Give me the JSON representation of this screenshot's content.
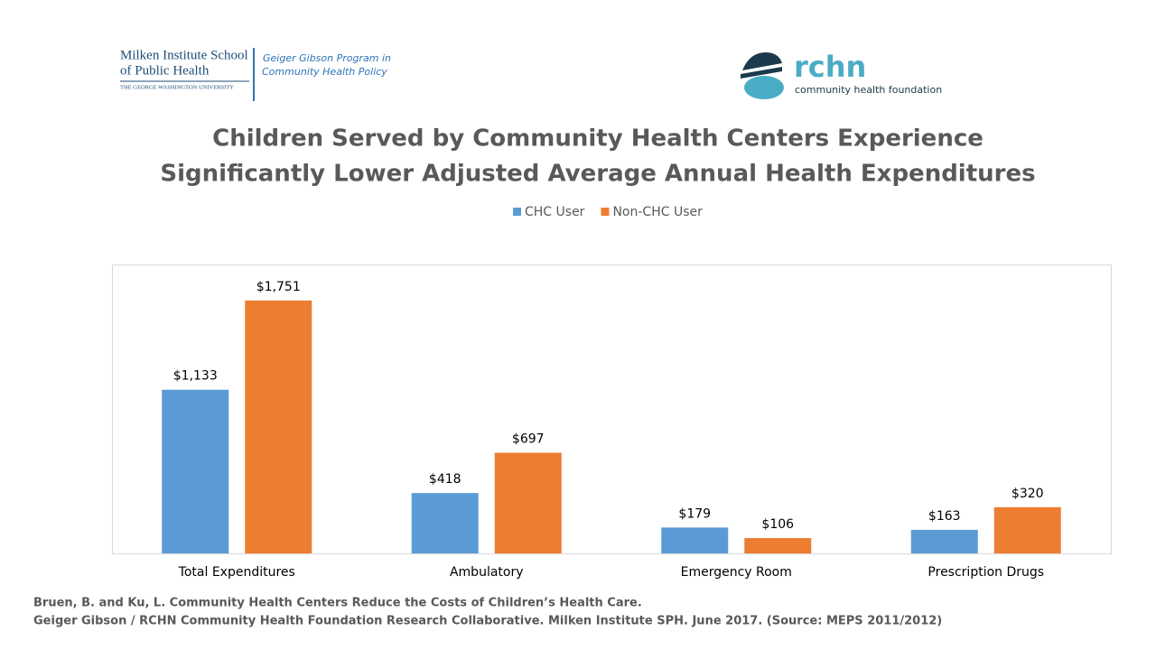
{
  "header": {
    "left_logo": {
      "name_line1": "Milken Institute School",
      "name_line2": "of Public Health",
      "university": "THE GEORGE WASHINGTON UNIVERSITY",
      "program_line1": "Geiger Gibson Program in",
      "program_line2": "Community Health Policy"
    },
    "right_logo": {
      "name": "rchn",
      "tagline": "community health foundation"
    }
  },
  "chart_data": {
    "type": "bar",
    "title": [
      "Children Served by Community Health Centers Experience",
      "Significantly Lower Adjusted Average Annual Health Expenditures"
    ],
    "categories": [
      "Total Expenditures",
      "Ambulatory",
      "Emergency Room",
      "Prescription Drugs"
    ],
    "series": [
      {
        "name": "CHC User",
        "color": "#5b9bd5",
        "values": [
          1133,
          418,
          179,
          163
        ],
        "value_labels": [
          "$1,133",
          "$418",
          "$179",
          "$163"
        ]
      },
      {
        "name": "Non-CHC User",
        "color": "#ed7d31",
        "values": [
          1751,
          697,
          106,
          320
        ],
        "value_labels": [
          "$1,751",
          "$697",
          "$106",
          "$320"
        ]
      }
    ],
    "ylim": [
      0,
      2000
    ],
    "legend": "top"
  },
  "footer": [
    "Bruen, B. and Ku, L. Community Health Centers Reduce the Costs of Children’s Health Care.",
    "Geiger Gibson / RCHN Community Health Foundation Research Collaborative. Milken Institute  SPH. June 2017.   (Source: MEPS 2011/2012)"
  ]
}
